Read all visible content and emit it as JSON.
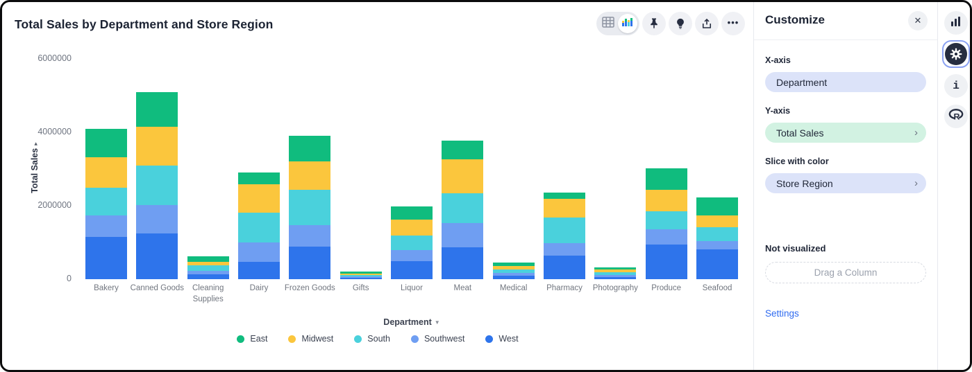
{
  "colors": {
    "east": "#10bc7e",
    "midwest": "#fbc63d",
    "south": "#4ad1dc",
    "southwest": "#6f9ef2",
    "west": "#2e74eb",
    "pill_blue": "#dce3f9",
    "pill_green": "#d2f2e2",
    "link_blue": "#2f6bf0"
  },
  "chart": {
    "title": "Total Sales by Department and Store Region",
    "toolbar": {
      "ellipsis": "•••"
    }
  },
  "chart_data": {
    "type": "bar",
    "stacked": true,
    "title": "Total Sales by Department and Store Region",
    "xlabel": "Department",
    "ylabel": "Total Sales",
    "ylim": [
      0,
      6000000
    ],
    "yticks": [
      0,
      2000000,
      4000000,
      6000000
    ],
    "grid": false,
    "legend_position": "bottom",
    "categories": [
      "Bakery",
      "Canned Goods",
      "Cleaning Supplies",
      "Dairy",
      "Frozen Goods",
      "Gifts",
      "Liquor",
      "Meat",
      "Medical",
      "Pharmacy",
      "Photography",
      "Produce",
      "Seafood"
    ],
    "series": [
      {
        "name": "East",
        "color": "#10bc7e",
        "values": [
          770000,
          930000,
          140000,
          320000,
          710000,
          45000,
          360000,
          510000,
          85000,
          170000,
          65000,
          590000,
          480000
        ]
      },
      {
        "name": "Midwest",
        "color": "#fbc63d",
        "values": [
          830000,
          1070000,
          110000,
          770000,
          770000,
          40000,
          430000,
          930000,
          95000,
          510000,
          75000,
          580000,
          330000
        ]
      },
      {
        "name": "South",
        "color": "#4ad1dc",
        "values": [
          750000,
          1080000,
          140000,
          810000,
          960000,
          40000,
          390000,
          820000,
          105000,
          700000,
          80000,
          490000,
          370000
        ]
      },
      {
        "name": "Southwest",
        "color": "#6f9ef2",
        "values": [
          590000,
          760000,
          90000,
          530000,
          590000,
          30000,
          300000,
          650000,
          75000,
          340000,
          50000,
          420000,
          220000
        ]
      },
      {
        "name": "West",
        "color": "#2e74eb",
        "values": [
          1150000,
          1250000,
          140000,
          470000,
          880000,
          45000,
          500000,
          870000,
          90000,
          640000,
          60000,
          940000,
          820000
        ]
      }
    ],
    "stack_order_bottom_to_top": [
      "West",
      "Southwest",
      "South",
      "Midwest",
      "East"
    ]
  },
  "panel": {
    "title": "Customize",
    "close_label": "✕",
    "sections": [
      {
        "label": "X-axis",
        "value": "Department"
      },
      {
        "label": "Y-axis",
        "value": "Total Sales"
      },
      {
        "label": "Slice with color",
        "value": "Store Region"
      }
    ],
    "chevron": "›",
    "not_visualized_label": "Not visualized",
    "dropzone_label": "Drag a Column",
    "settings_label": "Settings"
  },
  "rail": {
    "info_glyph": "i"
  }
}
